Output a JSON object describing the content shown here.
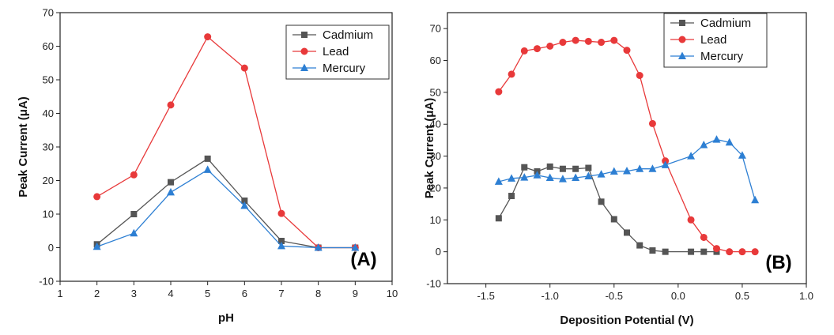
{
  "chart_data": [
    {
      "type": "line",
      "panel_label": "(A)",
      "xlabel": "pH",
      "ylabel": "Peak Current (μA)",
      "xlim": [
        1,
        10
      ],
      "ylim": [
        -10,
        70
      ],
      "xticks": [
        1,
        2,
        3,
        4,
        5,
        6,
        7,
        8,
        9,
        10
      ],
      "yticks": [
        -10,
        0,
        10,
        20,
        30,
        40,
        50,
        60,
        70
      ],
      "grid": false,
      "legend_position": "top-right",
      "series": [
        {
          "name": "Cadmium",
          "color": "#555555",
          "marker": "square",
          "x": [
            2,
            3,
            4,
            5,
            6,
            7,
            8,
            9
          ],
          "y": [
            1,
            10,
            19.5,
            26.5,
            14,
            2,
            0,
            0
          ]
        },
        {
          "name": "Lead",
          "color": "#e8393a",
          "marker": "circle",
          "x": [
            2,
            3,
            4,
            5,
            6,
            7,
            8,
            9
          ],
          "y": [
            15.2,
            21.7,
            42.5,
            62.8,
            53.5,
            10.2,
            0,
            0
          ]
        },
        {
          "name": "Mercury",
          "color": "#2d7fd3",
          "marker": "triangle",
          "x": [
            2,
            3,
            4,
            5,
            6,
            7,
            8,
            9
          ],
          "y": [
            0.3,
            4.3,
            16.5,
            23.2,
            12.5,
            0.5,
            0,
            0
          ]
        }
      ]
    },
    {
      "type": "line",
      "panel_label": "(B)",
      "xlabel": "Deposition Potential (V)",
      "ylabel": "Peak Current (μA)",
      "xlim": [
        -1.8,
        1.0
      ],
      "ylim": [
        -10,
        75
      ],
      "xticks": [
        -1.5,
        -1.0,
        -0.5,
        0.0,
        0.5,
        1.0
      ],
      "xtick_labels": [
        "-1.5",
        "-1.0",
        "-0.5",
        "0.0",
        "0.5",
        "1.0"
      ],
      "yticks": [
        -10,
        0,
        10,
        20,
        30,
        40,
        50,
        60,
        70
      ],
      "grid": false,
      "legend_position": "top-right",
      "series": [
        {
          "name": "Cadmium",
          "color": "#555555",
          "marker": "square",
          "x": [
            -1.4,
            -1.3,
            -1.2,
            -1.1,
            -1.0,
            -0.9,
            -0.8,
            -0.7,
            -0.6,
            -0.5,
            -0.4,
            -0.3,
            -0.2,
            -0.1,
            0.1,
            0.2,
            0.3
          ],
          "y": [
            10.5,
            17.5,
            26.5,
            25.2,
            26.7,
            26,
            26,
            26.3,
            15.7,
            10.2,
            6,
            2,
            0.4,
            0,
            0,
            0,
            0
          ]
        },
        {
          "name": "Lead",
          "color": "#e8393a",
          "marker": "circle",
          "x": [
            -1.4,
            -1.3,
            -1.2,
            -1.1,
            -1.0,
            -0.9,
            -0.8,
            -0.7,
            -0.6,
            -0.5,
            -0.4,
            -0.3,
            -0.2,
            -0.1,
            0.1,
            0.2,
            0.3,
            0.4,
            0.5,
            0.6
          ],
          "y": [
            50.2,
            55.7,
            63,
            63.7,
            64.5,
            65.7,
            66.3,
            66,
            65.7,
            66.3,
            63.2,
            55.3,
            40.2,
            28.5,
            10,
            4.5,
            1,
            0,
            0,
            0
          ]
        },
        {
          "name": "Mercury",
          "color": "#2d7fd3",
          "marker": "triangle",
          "x": [
            -1.4,
            -1.3,
            -1.2,
            -1.1,
            -1.0,
            -0.9,
            -0.8,
            -0.7,
            -0.6,
            -0.5,
            -0.4,
            -0.3,
            -0.2,
            -0.1,
            0.1,
            0.2,
            0.3,
            0.4,
            0.5,
            0.6
          ],
          "y": [
            22,
            23,
            23.3,
            24,
            23.2,
            22.8,
            23.2,
            23.7,
            24.3,
            25.2,
            25.3,
            26,
            26,
            27.2,
            30,
            33.5,
            35.2,
            34.3,
            30.2,
            16.2
          ]
        }
      ]
    }
  ]
}
